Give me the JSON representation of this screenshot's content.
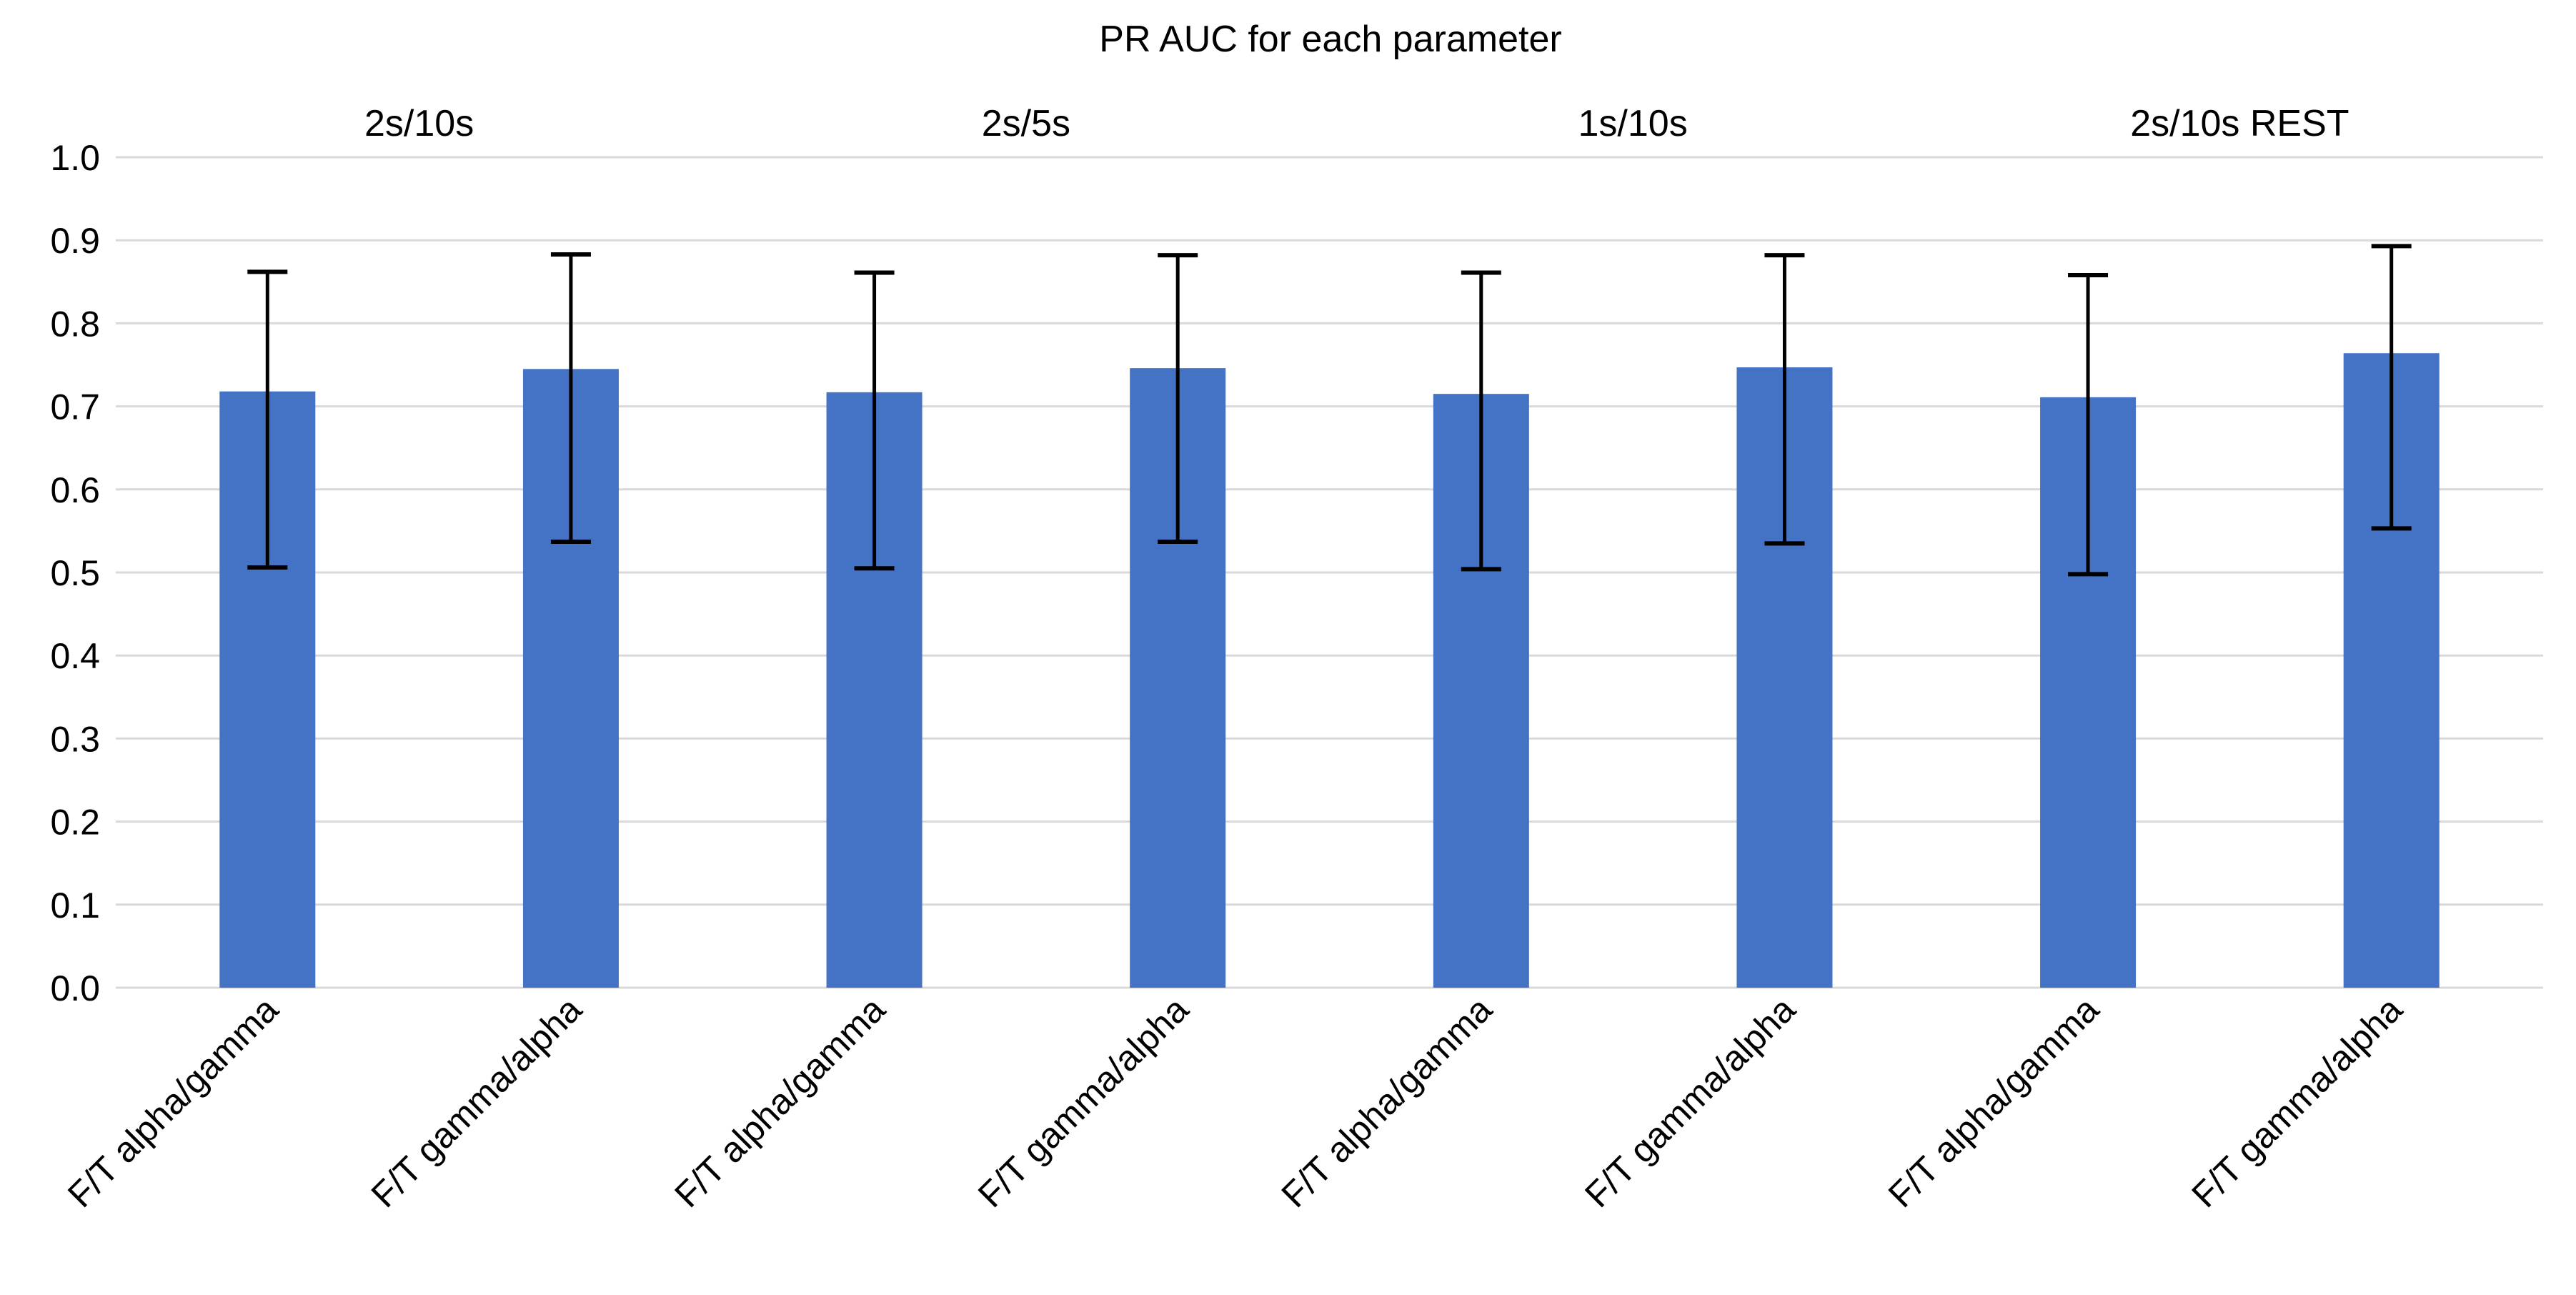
{
  "chart_data": {
    "type": "bar",
    "title": "PR AUC for each parameter",
    "groups": [
      "2s/10s",
      "2s/5s",
      "1s/10s",
      "2s/10s REST"
    ],
    "categories": [
      "F/T alpha/gamma",
      "F/T gamma/alpha",
      "F/T alpha/gamma",
      "F/T gamma/alpha",
      "F/T alpha/gamma",
      "F/T gamma/alpha",
      "F/T alpha/gamma",
      "F/T gamma/alpha"
    ],
    "values": [
      0.718,
      0.745,
      0.717,
      0.746,
      0.715,
      0.747,
      0.711,
      0.764
    ],
    "error_upper": [
      0.862,
      0.883,
      0.861,
      0.882,
      0.861,
      0.882,
      0.858,
      0.893
    ],
    "error_lower": [
      0.506,
      0.537,
      0.505,
      0.537,
      0.504,
      0.535,
      0.498,
      0.553
    ],
    "ylim": [
      0,
      1.0
    ],
    "yticks": [
      "0.0",
      "0.1",
      "0.2",
      "0.3",
      "0.4",
      "0.5",
      "0.6",
      "0.7",
      "0.8",
      "0.9",
      "1.0"
    ],
    "xlabel": "",
    "ylabel": "",
    "grid": true,
    "bar_color": "#4472C4",
    "grid_color": "#D9D9D9"
  }
}
